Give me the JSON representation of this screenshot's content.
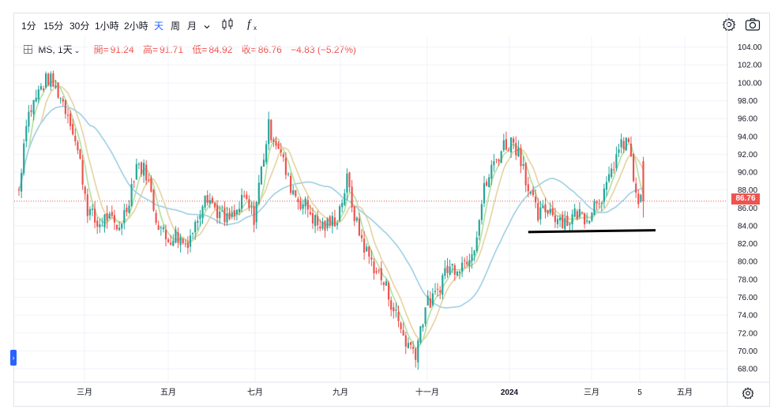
{
  "toolbar": {
    "timeframes": [
      "1分",
      "15分",
      "30分",
      "1小時",
      "2小時",
      "天",
      "周",
      "月"
    ],
    "active_timeframe": "天",
    "dropdown_icon": "chevron-down-icon",
    "chart_type_icon": "candlestick-icon",
    "indicator_icon": "fx-icon",
    "settings_icon": "gear-icon",
    "snapshot_icon": "camera-icon"
  },
  "legend": {
    "symbol": "MS, 1天",
    "open_label": "開=",
    "open": "91.24",
    "high_label": "高=",
    "high": "91.71",
    "low_label": "低=",
    "low": "84.92",
    "close_label": "收=",
    "close": "86.76",
    "change": "−4.83 (−5.27%)"
  },
  "price_tag": "86.76",
  "colors": {
    "up": "#26a69a",
    "down": "#ef5350",
    "ma_fast": "#b7e4a8",
    "ma_mid": "#e8d7a8",
    "ma_slow": "#a9d5e6",
    "accent": "#2962ff"
  },
  "chart_data": {
    "type": "candlestick",
    "title": "",
    "xlabel": "",
    "ylabel": "",
    "ylim": [
      66.5,
      105.2
    ],
    "y_ticks": [
      "104.00",
      "102.00",
      "100.00",
      "98.00",
      "96.00",
      "94.00",
      "92.00",
      "90.00",
      "88.00",
      "86.00",
      "84.00",
      "82.00",
      "80.00",
      "78.00",
      "76.00",
      "74.00",
      "72.00",
      "70.00",
      "68.00"
    ],
    "x_ticks": [
      "三月",
      "五月",
      "七月",
      "九月",
      "十一月",
      "2024",
      "三月",
      "5",
      "五月"
    ],
    "last_price": 86.76,
    "path_points": [
      [
        0,
        88
      ],
      [
        3,
        96
      ],
      [
        9,
        99.5
      ],
      [
        12,
        100.5
      ],
      [
        16,
        99
      ],
      [
        21,
        96
      ],
      [
        25,
        91
      ],
      [
        28,
        86
      ],
      [
        32,
        84
      ],
      [
        36,
        85
      ],
      [
        40,
        83.5
      ],
      [
        44,
        86
      ],
      [
        48,
        91
      ],
      [
        52,
        90
      ],
      [
        56,
        85
      ],
      [
        60,
        82.5
      ],
      [
        64,
        83
      ],
      [
        68,
        82
      ],
      [
        72,
        84
      ],
      [
        76,
        88
      ],
      [
        80,
        86
      ],
      [
        84,
        84.5
      ],
      [
        88,
        85
      ],
      [
        92,
        87
      ],
      [
        96,
        85
      ],
      [
        100,
        92
      ],
      [
        102,
        95
      ],
      [
        106,
        93
      ],
      [
        110,
        89
      ],
      [
        114,
        87
      ],
      [
        118,
        86
      ],
      [
        122,
        84
      ],
      [
        126,
        84
      ],
      [
        130,
        85
      ],
      [
        134,
        89
      ],
      [
        138,
        84
      ],
      [
        142,
        81
      ],
      [
        146,
        79
      ],
      [
        150,
        77
      ],
      [
        154,
        74
      ],
      [
        158,
        71
      ],
      [
        162,
        70
      ],
      [
        166,
        75
      ],
      [
        170,
        76
      ],
      [
        174,
        79
      ],
      [
        178,
        79.5
      ],
      [
        182,
        80
      ],
      [
        186,
        82
      ],
      [
        190,
        88
      ],
      [
        194,
        91
      ],
      [
        198,
        93
      ],
      [
        202,
        93.5
      ],
      [
        206,
        91
      ],
      [
        208,
        88
      ],
      [
        212,
        85
      ],
      [
        216,
        86
      ],
      [
        220,
        85
      ],
      [
        224,
        84.5
      ],
      [
        228,
        85.5
      ],
      [
        232,
        85
      ],
      [
        236,
        87
      ],
      [
        240,
        88
      ],
      [
        244,
        92
      ],
      [
        248,
        93.5
      ],
      [
        250,
        92
      ],
      [
        252,
        86.8
      ]
    ],
    "drawn_line": {
      "from": [
        208,
        83.3
      ],
      "to": [
        260,
        83.5
      ],
      "color": "#000000"
    }
  }
}
